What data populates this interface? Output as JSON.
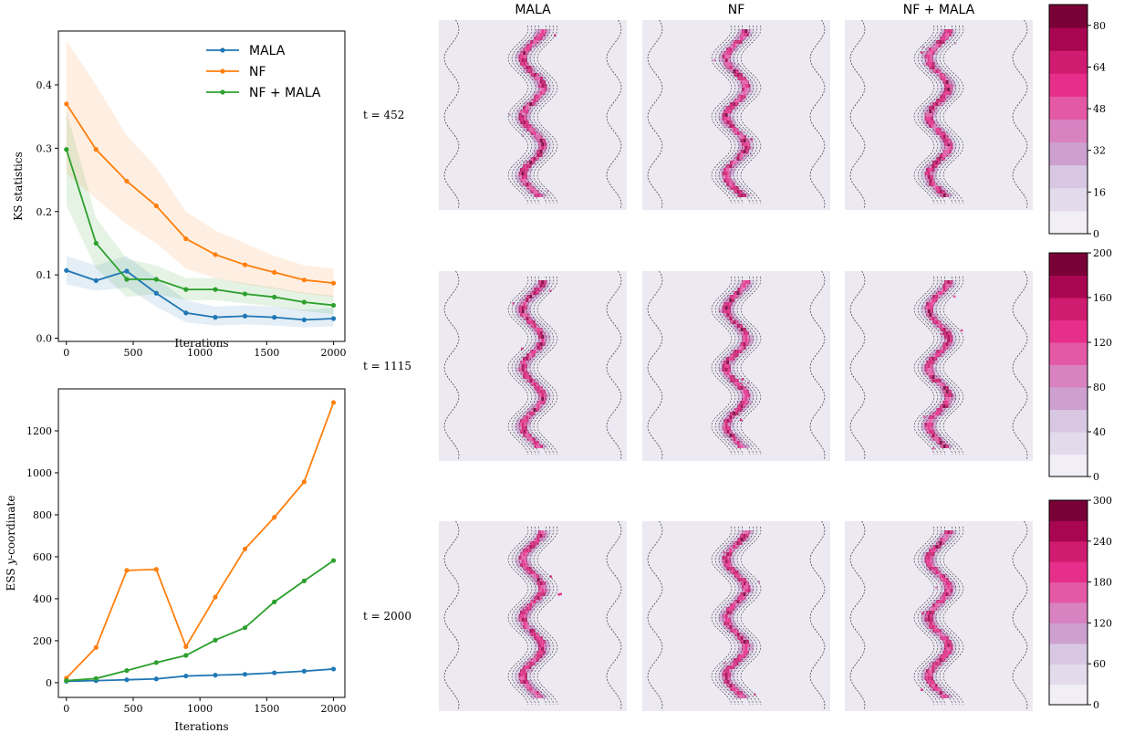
{
  "chart_data": [
    {
      "type": "line",
      "ylabel": "KS statistics",
      "xlabel": "Iterations",
      "xlim": [
        -60,
        2085
      ],
      "ylim": [
        -0.005,
        0.485
      ],
      "xticks": [
        0,
        500,
        1000,
        1500,
        2000
      ],
      "xtick_labels": [
        "0",
        "500",
        "1000",
        "1500",
        "2000"
      ],
      "yticks": [
        0.0,
        0.1,
        0.2,
        0.3,
        0.4
      ],
      "ytick_labels": [
        "0.0",
        "0.1",
        "0.2",
        "0.3",
        "0.4"
      ],
      "legend_placement": "top-right",
      "x": [
        0,
        222,
        452,
        673,
        895,
        1115,
        1337,
        1557,
        1780,
        2000
      ],
      "series": [
        {
          "name": "MALA",
          "color": "#1f77b4",
          "values": [
            0.107,
            0.091,
            0.106,
            0.071,
            0.04,
            0.033,
            0.035,
            0.033,
            0.029,
            0.031
          ],
          "band_low": [
            0.085,
            0.075,
            0.08,
            0.05,
            0.025,
            0.02,
            0.022,
            0.02,
            0.017,
            0.019
          ],
          "band_high": [
            0.13,
            0.115,
            0.13,
            0.095,
            0.06,
            0.05,
            0.052,
            0.05,
            0.045,
            0.048
          ]
        },
        {
          "name": "NF",
          "color": "#ff7f0e",
          "values": [
            0.37,
            0.298,
            0.248,
            0.209,
            0.157,
            0.132,
            0.116,
            0.104,
            0.092,
            0.087
          ],
          "band_low": [
            0.26,
            0.22,
            0.18,
            0.15,
            0.11,
            0.095,
            0.085,
            0.078,
            0.07,
            0.065
          ],
          "band_high": [
            0.47,
            0.4,
            0.32,
            0.27,
            0.2,
            0.17,
            0.15,
            0.13,
            0.115,
            0.11
          ]
        },
        {
          "name": "NF + MALA",
          "color": "#2ca02c",
          "values": [
            0.298,
            0.15,
            0.093,
            0.093,
            0.077,
            0.077,
            0.07,
            0.065,
            0.057,
            0.052
          ],
          "band_low": [
            0.21,
            0.11,
            0.065,
            0.07,
            0.06,
            0.06,
            0.055,
            0.05,
            0.043,
            0.038
          ],
          "band_high": [
            0.36,
            0.19,
            0.125,
            0.115,
            0.095,
            0.095,
            0.087,
            0.08,
            0.072,
            0.067
          ]
        }
      ]
    },
    {
      "type": "line",
      "ylabel_prefix": "ESS ",
      "ylabel_var": "y",
      "ylabel_suffix": "-coordinate",
      "xlabel": "Iterations",
      "xlim": [
        -60,
        2085
      ],
      "ylim": [
        -70,
        1400
      ],
      "xticks": [
        0,
        500,
        1000,
        1500,
        2000
      ],
      "xtick_labels": [
        "0",
        "500",
        "1000",
        "1500",
        "2000"
      ],
      "yticks": [
        0,
        200,
        400,
        600,
        800,
        1000,
        1200
      ],
      "ytick_labels": [
        "0",
        "200",
        "400",
        "600",
        "800",
        "1000",
        "1200"
      ],
      "x": [
        0,
        222,
        452,
        673,
        895,
        1115,
        1337,
        1557,
        1780,
        2000
      ],
      "series": [
        {
          "color": "#1f77b4",
          "values": [
            7,
            10,
            14,
            18,
            32,
            36,
            40,
            47,
            55,
            65
          ]
        },
        {
          "color": "#ff7f0e",
          "values": [
            22,
            168,
            535,
            540,
            172,
            408,
            637,
            788,
            957,
            1335
          ]
        },
        {
          "color": "#2ca02c",
          "values": [
            10,
            20,
            58,
            96,
            130,
            203,
            262,
            385,
            485,
            582
          ]
        }
      ]
    }
  ],
  "heatmaps": {
    "columns": [
      "MALA",
      "NF",
      "NF + MALA"
    ],
    "rows": [
      {
        "label": "t = 452",
        "colorbar_ticks": [
          "0",
          "16",
          "32",
          "48",
          "64",
          "80"
        ],
        "colorbar_max": 88,
        "tick_values": [
          0,
          16,
          32,
          48,
          64,
          80
        ]
      },
      {
        "label": "t = 1115",
        "colorbar_ticks": [
          "0",
          "40",
          "80",
          "120",
          "160",
          "200"
        ],
        "colorbar_max": 200,
        "tick_values": [
          0,
          40,
          80,
          120,
          160,
          200
        ]
      },
      {
        "label": "t = 2000",
        "colorbar_ticks": [
          "0",
          "60",
          "120",
          "180",
          "240",
          "300"
        ],
        "colorbar_max": 300,
        "tick_values": [
          0,
          60,
          120,
          180,
          240,
          300
        ]
      }
    ],
    "colormap": [
      "#f1eef6",
      "#e3dbec",
      "#d7c7e2",
      "#cda0d0",
      "#d882c2",
      "#e459a6",
      "#e52f8a",
      "#d01c70",
      "#a80650",
      "#7a0038"
    ],
    "background_color": "#ece9f3",
    "contour_color": "#333333"
  }
}
